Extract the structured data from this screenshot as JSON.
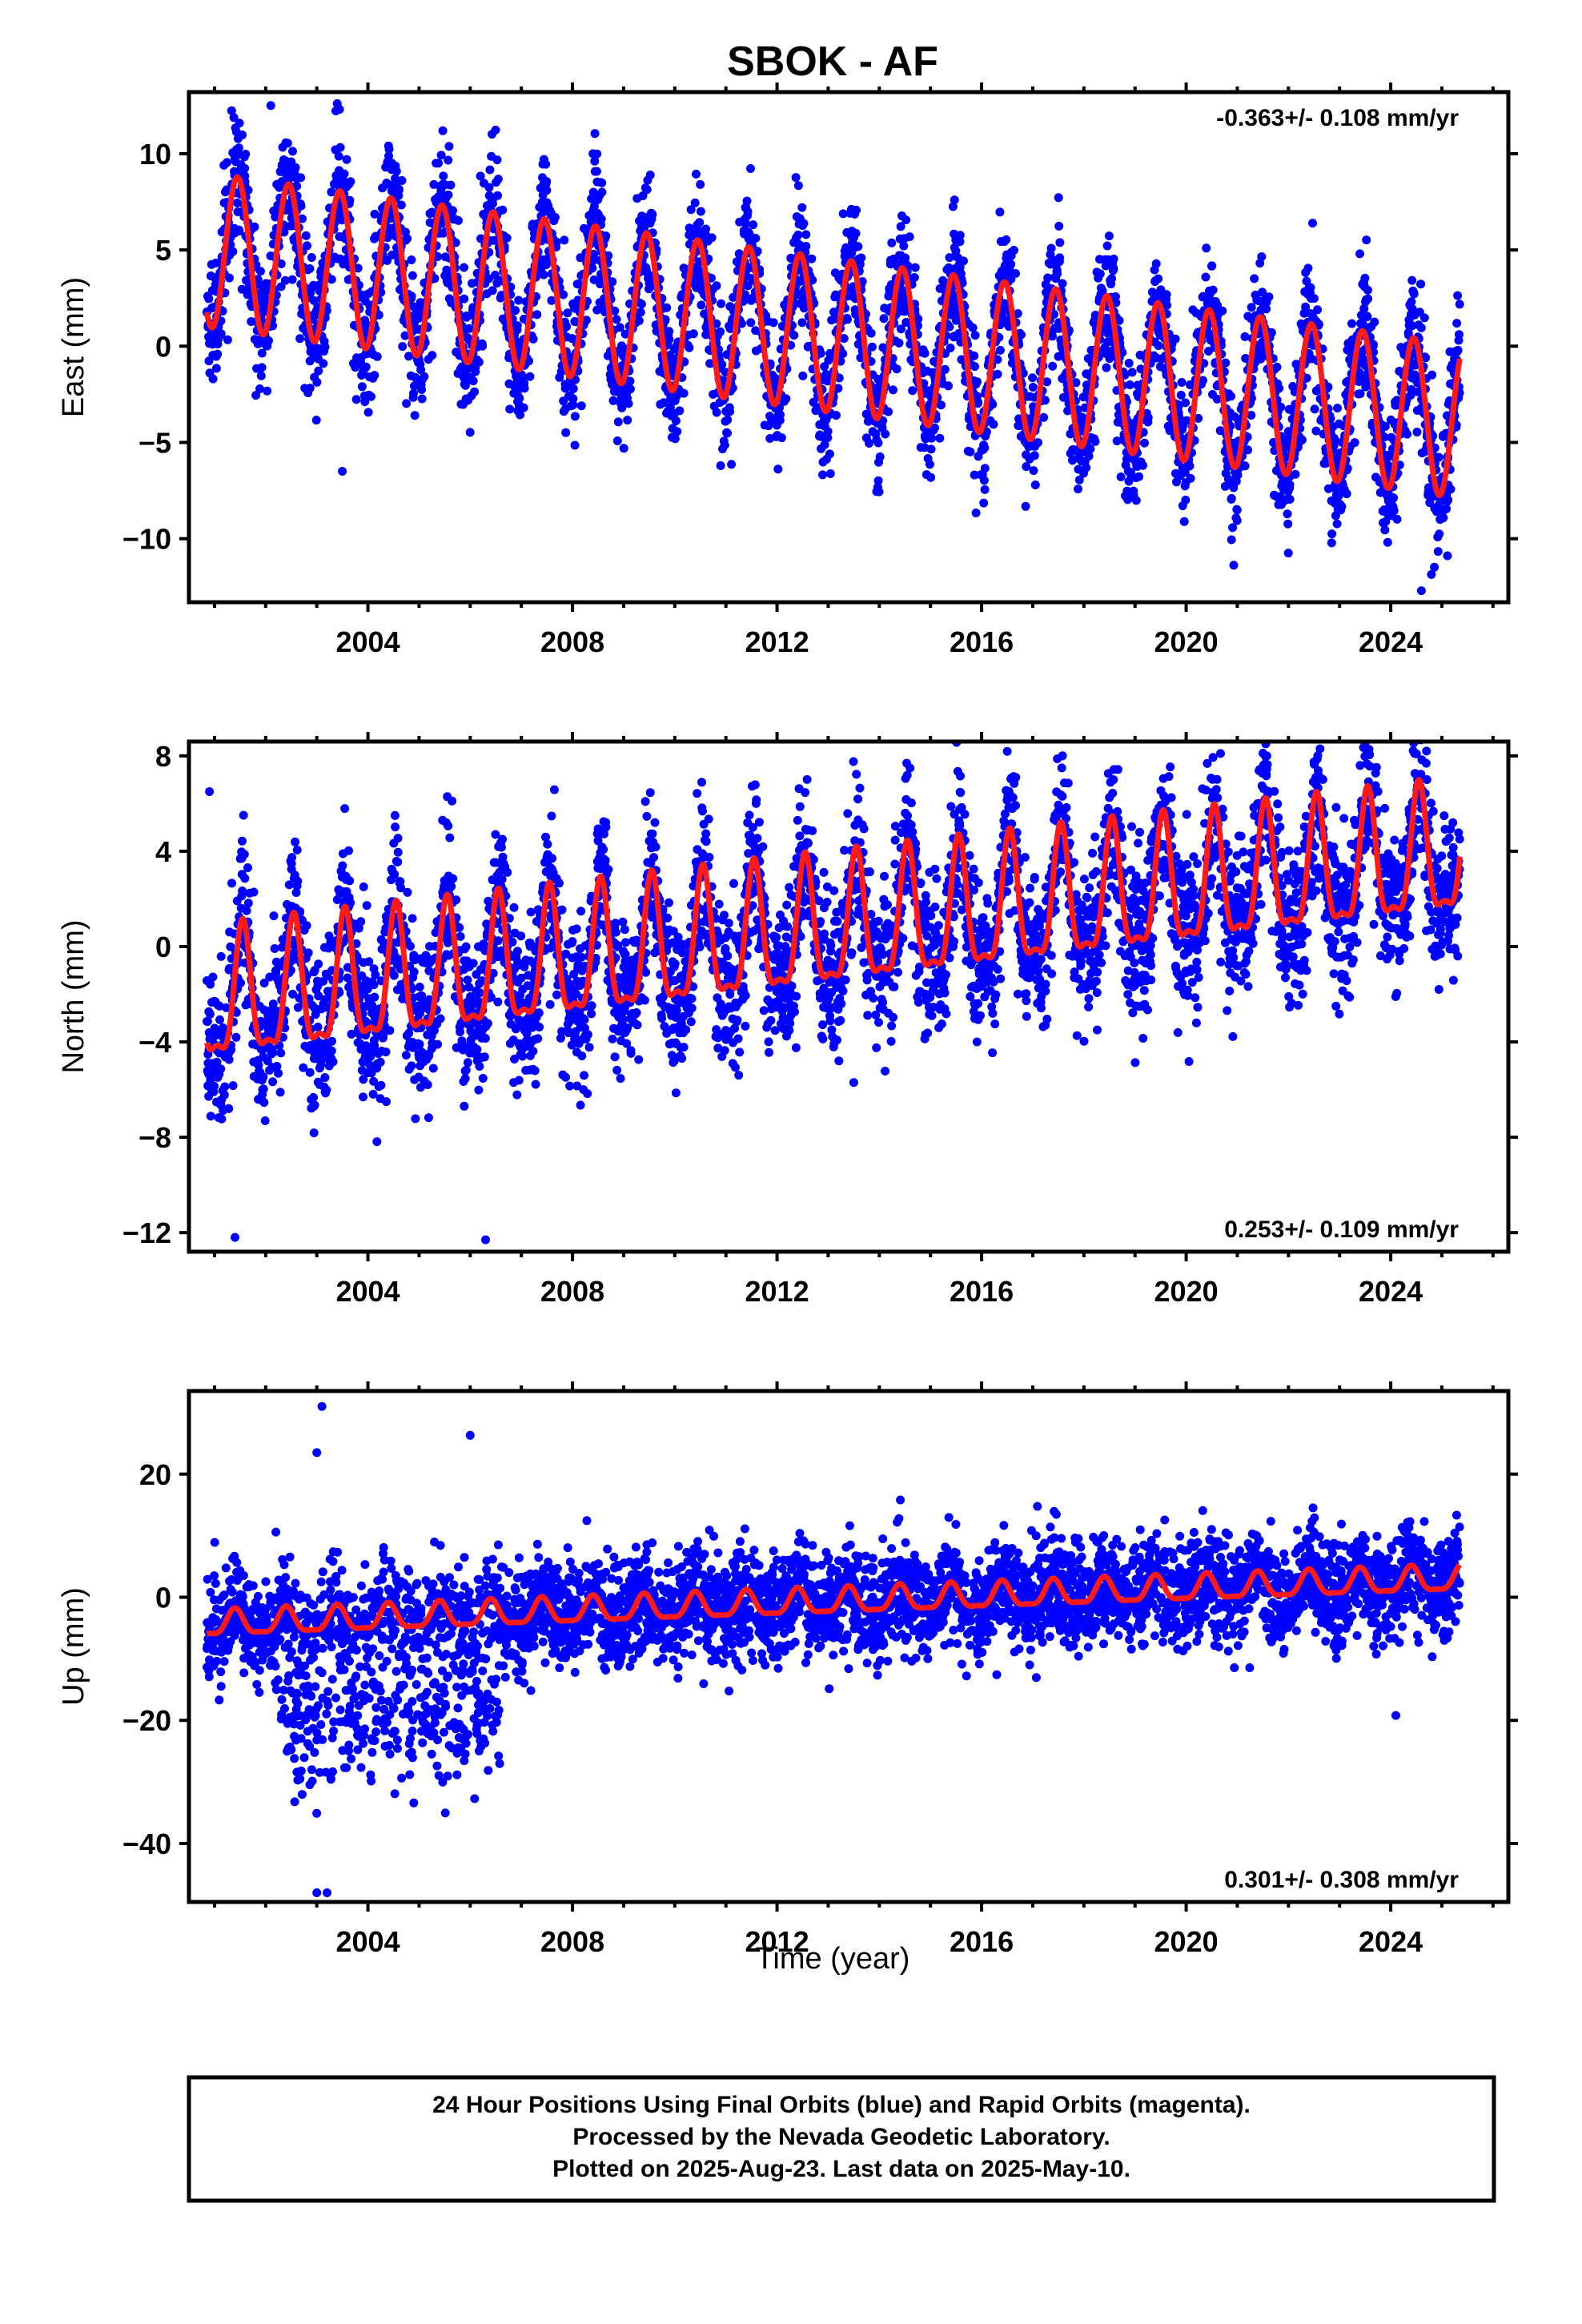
{
  "title": "SBOK - AF",
  "x_axis": {
    "label": "Time (year)",
    "range": [
      2000.5,
      2026.3
    ],
    "ticks": [
      2004,
      2008,
      2012,
      2016,
      2020,
      2024
    ]
  },
  "colors": {
    "data": "#0000ff",
    "model": "#ff1a1a",
    "frame": "#000000"
  },
  "footer": {
    "line1": "24 Hour Positions Using Final Orbits (blue) and Rapid Orbits (magenta).",
    "line2": "Processed by the Nevada Geodetic Laboratory.",
    "line3": "Plotted on 2025-Aug-23. Last data on 2025-May-10."
  },
  "chart_data": [
    {
      "type": "scatter",
      "component": "east",
      "ylabel": "East (mm)",
      "ylim": [
        -13.3,
        13.2
      ],
      "yticks": [
        -10,
        -5,
        0,
        5,
        10
      ],
      "annotation": "-0.363+/- 0.108 mm/yr",
      "annotation_position": "top-right",
      "series": [
        {
          "name": "Final Orbits",
          "style": "points"
        },
        {
          "name": "Model",
          "style": "line"
        }
      ],
      "model": {
        "start": 2000.85,
        "end": 2025.35,
        "offset": 5.0,
        "rate": -0.363,
        "annual_amplitude": 4.0,
        "annual_peak_phase": 0.45,
        "semiannual_amplitude": 0.0
      },
      "outliers": [
        [
          2002.1,
          12.5
        ],
        [
          2003.4,
          12.6
        ],
        [
          2008.4,
          10.0
        ],
        [
          2024.6,
          -12.7
        ],
        [
          2003.5,
          -6.5
        ]
      ]
    },
    {
      "type": "scatter",
      "component": "north",
      "ylabel": "North (mm)",
      "ylim": [
        -12.8,
        8.6
      ],
      "yticks": [
        -12,
        -8,
        -4,
        0,
        4,
        8
      ],
      "annotation": "0.253+/- 0.109 mm/yr",
      "annotation_position": "bottom-right",
      "series": [
        {
          "name": "Final Orbits",
          "style": "points"
        },
        {
          "name": "Model",
          "style": "line"
        }
      ],
      "model": {
        "start": 2000.85,
        "end": 2025.35,
        "offset": -2.5,
        "rate": 0.253,
        "annual_amplitude": 2.6,
        "annual_peak_phase": 0.55,
        "semiannual_amplitude": 0.9
      },
      "outliers": [
        [
          2000.9,
          6.5
        ],
        [
          2001.4,
          -12.2
        ],
        [
          2006.3,
          -12.3
        ],
        [
          2024.7,
          8.2
        ],
        [
          2013.5,
          -5.7
        ],
        [
          2023.4,
          7.6
        ]
      ]
    },
    {
      "type": "scatter",
      "component": "up",
      "ylabel": "Up (mm)",
      "ylim": [
        -49.5,
        33.5
      ],
      "yticks": [
        -40,
        -20,
        0,
        20
      ],
      "annotation": "0.301+/- 0.308 mm/yr",
      "annotation_position": "bottom-right",
      "series": [
        {
          "name": "Final Orbits",
          "style": "points"
        },
        {
          "name": "Model",
          "style": "line"
        }
      ],
      "model": {
        "start": 2000.85,
        "end": 2025.35,
        "offset": -4.5,
        "rate": 0.301,
        "annual_amplitude": 2.0,
        "annual_peak_phase": 0.4,
        "semiannual_amplitude": 0.6
      },
      "offset_period": {
        "start": 2002.3,
        "end": 2006.6,
        "mean": -19.0
      },
      "outliers": [
        [
          2003.1,
          31.0
        ],
        [
          2006.0,
          26.3
        ],
        [
          2003.0,
          -48.0
        ],
        [
          2003.2,
          -48.0
        ],
        [
          2024.1,
          -19.2
        ],
        [
          2003.0,
          23.5
        ]
      ]
    }
  ]
}
